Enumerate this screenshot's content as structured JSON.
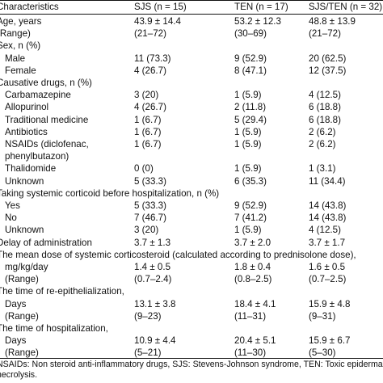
{
  "header": [
    "Characteristics",
    "SJS (n = 15)",
    "TEN (n = 17)",
    "SJS/TEN (n = 32)"
  ],
  "rows": [
    {
      "label": "Age, years",
      "indent": 0,
      "sjs": "43.9 ± 14.4",
      "ten": "53.2 ± 12.3",
      "all": "48.8 ± 13.9"
    },
    {
      "label": "(Range)",
      "indent": 0,
      "sjs": "(21–72)",
      "ten": "(30–69)",
      "all": "(21–72)"
    },
    {
      "label": "Sex, n (%)",
      "indent": 0,
      "sjs": "",
      "ten": "",
      "all": ""
    },
    {
      "label": "Male",
      "indent": 1,
      "sjs": "11 (73.3)",
      "ten": "9 (52.9)",
      "all": "20 (62.5)"
    },
    {
      "label": "Female",
      "indent": 1,
      "sjs": "4 (26.7)",
      "ten": "8 (47.1)",
      "all": "12 (37.5)"
    },
    {
      "label": "Causative drugs, n (%)",
      "indent": 0,
      "sjs": "",
      "ten": "",
      "all": ""
    },
    {
      "label": "Carbamazepine",
      "indent": 1,
      "sjs": "3 (20)",
      "ten": "1 (5.9)",
      "all": "4 (12.5)"
    },
    {
      "label": "Allopurinol",
      "indent": 1,
      "sjs": "4 (26.7)",
      "ten": "2 (11.8)",
      "all": "6 (18.8)"
    },
    {
      "label": "Traditional medicine",
      "indent": 1,
      "sjs": "1 (6.7)",
      "ten": "5 (29.4)",
      "all": "6 (18.8)"
    },
    {
      "label": "Antibiotics",
      "indent": 1,
      "sjs": "1 (6.7)",
      "ten": "1 (5.9)",
      "all": "2 (6.2)"
    },
    {
      "label": "NSAIDs (diclofenac,",
      "indent": 1,
      "sjs": "1 (6.7)",
      "ten": "1 (5.9)",
      "all": "2 (6.2)"
    },
    {
      "label": "phenylbutazon)",
      "indent": 1,
      "sjs": "",
      "ten": "",
      "all": ""
    },
    {
      "label": "Thalidomide",
      "indent": 1,
      "sjs": "0 (0)",
      "ten": "1 (5.9)",
      "all": "1 (3.1)"
    },
    {
      "label": "Unknown",
      "indent": 1,
      "sjs": "5 (33.3)",
      "ten": "6 (35.3)",
      "all": "11 (34.4)"
    },
    {
      "label": "Taking systemic corticoid before hospitalization, n (%)",
      "indent": 0,
      "sjs": "",
      "ten": "",
      "all": ""
    },
    {
      "label": "Yes",
      "indent": 1,
      "sjs": "5 (33.3)",
      "ten": "9 (52.9)",
      "all": "14 (43.8)"
    },
    {
      "label": "No",
      "indent": 1,
      "sjs": "7 (46.7)",
      "ten": "7 (41.2)",
      "all": "14 (43.8)"
    },
    {
      "label": "Unknown",
      "indent": 1,
      "sjs": "3 (20)",
      "ten": "1 (5.9)",
      "all": "4 (12.5)"
    },
    {
      "label": "Delay of administration",
      "indent": 0,
      "sjs": "3.7 ± 1.3",
      "ten": "3.7 ± 2.0",
      "all": "3.7 ± 1.7"
    },
    {
      "label": "The mean dose of systemic corticosteroid (calculated according to prednisolone dose),",
      "indent": 0,
      "sjs": "",
      "ten": "",
      "all": ""
    },
    {
      "label": "mg/kg/day",
      "indent": 1,
      "sjs": "1.4 ± 0.5",
      "ten": "1.8 ± 0.4",
      "all": "1.6 ± 0.5"
    },
    {
      "label": "(Range)",
      "indent": 1,
      "sjs": "(0.7–2.4)",
      "ten": "(0.8–2.5)",
      "all": "(0.7–2.5)"
    },
    {
      "label": "The time of re-epithelialization,",
      "indent": 0,
      "sjs": "",
      "ten": "",
      "all": ""
    },
    {
      "label": "Days",
      "indent": 1,
      "sjs": "13.1 ± 3.8",
      "ten": "18.4 ± 4.1",
      "all": "15.9 ± 4.8"
    },
    {
      "label": "(Range)",
      "indent": 1,
      "sjs": "(9–23)",
      "ten": "(11–31)",
      "all": "(9–31)"
    },
    {
      "label": "The time of hospitalization,",
      "indent": 0,
      "sjs": "",
      "ten": "",
      "all": ""
    },
    {
      "label": "Days",
      "indent": 1,
      "sjs": "10.9 ± 4.4",
      "ten": "20.4 ± 5.1",
      "all": "15.9 ± 6.7"
    },
    {
      "label": "(Range)",
      "indent": 1,
      "sjs": "(5–21)",
      "ten": "(11–30)",
      "all": "(5–30)"
    }
  ],
  "footnote": [
    "NSAIDs: Non steroid anti-inflammatory drugs, SJS: Stevens-Johnson syndrome, TEN: Toxic epidermal",
    "necrolysis."
  ]
}
